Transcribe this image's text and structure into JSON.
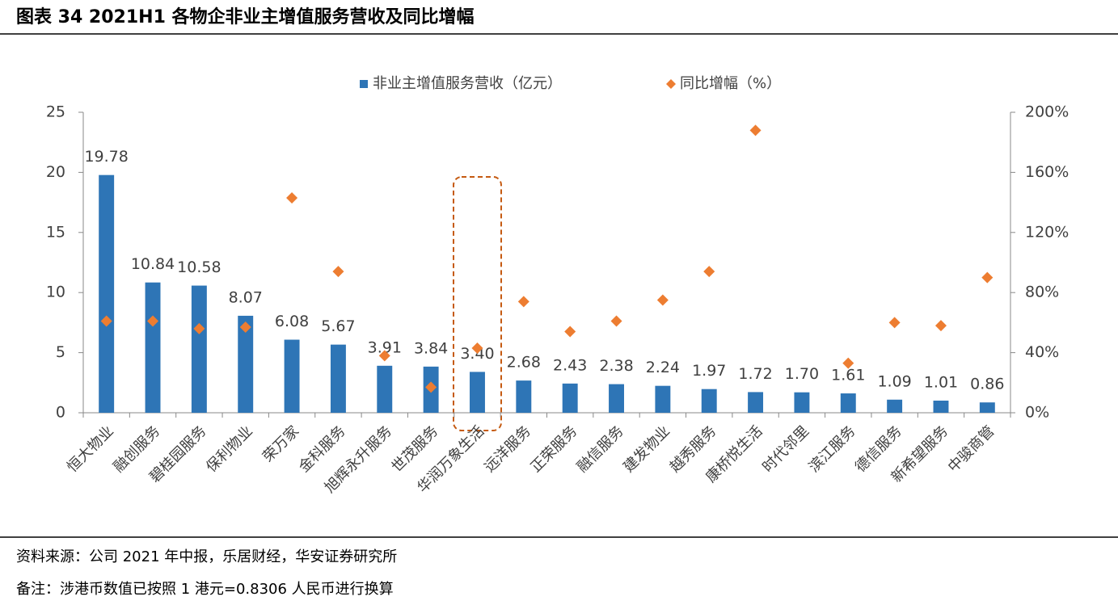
{
  "header": {
    "title": "图表 34   2021H1 各物企非业主增值服务营收及同比增幅"
  },
  "chart_data": {
    "type": "bar",
    "categories": [
      "恒大物业",
      "融创服务",
      "碧桂园服务",
      "保利物业",
      "荣万家",
      "金科服务",
      "旭辉永升服务",
      "世茂服务",
      "华润万象生活",
      "远洋服务",
      "正荣服务",
      "融信服务",
      "建发物业",
      "越秀服务",
      "康桥悦生活",
      "时代邻里",
      "滨江服务",
      "德信服务",
      "新希望服务",
      "中骏商管"
    ],
    "series": [
      {
        "name": "非业主增值服务营收（亿元）",
        "type": "bar",
        "color": "#2e75b6",
        "values": [
          19.78,
          10.84,
          10.58,
          8.07,
          6.08,
          5.67,
          3.91,
          3.84,
          3.4,
          2.68,
          2.43,
          2.38,
          2.24,
          1.97,
          1.72,
          1.7,
          1.61,
          1.09,
          1.01,
          0.86
        ],
        "value_labels": [
          "19.78",
          "10.84",
          "10.58",
          "8.07",
          "6.08",
          "5.67",
          "3.91",
          "3.84",
          "3.40",
          "2.68",
          "2.43",
          "2.38",
          "2.24",
          "1.97",
          "1.72",
          "1.70",
          "1.61",
          "1.09",
          "1.01",
          "0.86"
        ]
      },
      {
        "name": "同比增幅（%）",
        "type": "scatter",
        "marker": "diamond",
        "color": "#ed7d31",
        "axis": "y2",
        "values": [
          61,
          61,
          56,
          57,
          143,
          94,
          38,
          17,
          43,
          74,
          54,
          61,
          75,
          94,
          188,
          null,
          33,
          60,
          58,
          90
        ]
      }
    ],
    "ylim": [
      0,
      25
    ],
    "yticks": [
      0,
      5,
      10,
      15,
      20,
      25
    ],
    "y2lim": [
      0,
      200
    ],
    "y2ticks": [
      {
        "value": 0,
        "label": "0%"
      },
      {
        "value": 40,
        "label": "40%"
      },
      {
        "value": 80,
        "label": "80%"
      },
      {
        "value": 120,
        "label": "120%"
      },
      {
        "value": 160,
        "label": "160%"
      },
      {
        "value": 200,
        "label": "200%"
      }
    ],
    "legend": "top",
    "grid": false
  },
  "footer": {
    "source": "资料来源：公司 2021 年中报，乐居财经，华安证券研究所",
    "note": "备注：涉港币数值已按照 1 港元=0.8306 人民币进行换算"
  }
}
